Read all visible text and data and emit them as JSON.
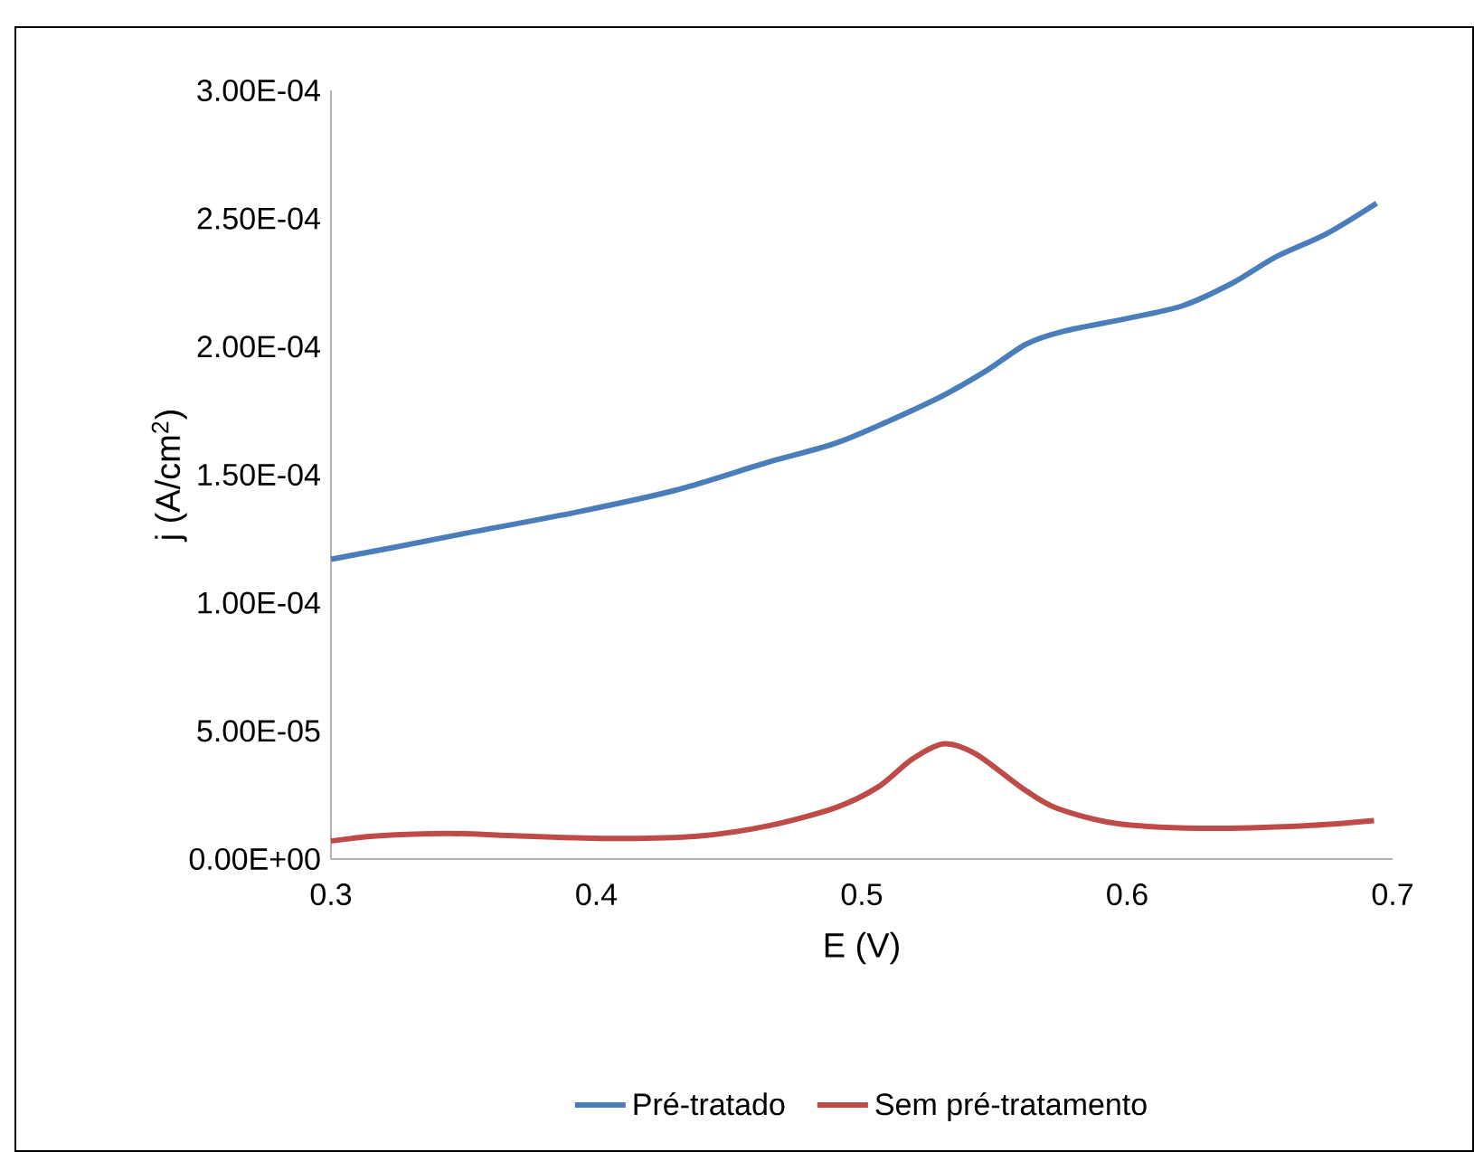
{
  "chart_data": {
    "type": "line",
    "xlabel": "E (V)",
    "ylabel": "j (A/cm$^{2}$)",
    "xlim": [
      0.3,
      0.7
    ],
    "xticks": [
      0.3,
      0.4,
      0.5,
      0.6,
      0.7
    ],
    "ylim": [
      0,
      0.0003
    ],
    "yticks": [
      {
        "value": 0,
        "label": "0.00E+00"
      },
      {
        "value": 5e-05,
        "label": "5.00E-05"
      },
      {
        "value": 0.0001,
        "label": "1.00E-04"
      },
      {
        "value": 0.00015,
        "label": "1.50E-04"
      },
      {
        "value": 0.0002,
        "label": "2.00E-04"
      },
      {
        "value": 0.00025,
        "label": "2.50E-04"
      },
      {
        "value": 0.0003,
        "label": "3.00E-04"
      }
    ],
    "grid": false,
    "legend": "bottom",
    "marker": "none",
    "line_style": "solid",
    "x": [
      0.3,
      0.323,
      0.35,
      0.393,
      0.43,
      0.465,
      0.492,
      0.527,
      0.546,
      0.562,
      0.576,
      0.6,
      0.621,
      0.64,
      0.656,
      0.675,
      0.694
    ],
    "series": [
      {
        "name": "Pré-tratado",
        "color": "#4a7ebb",
        "values": [
          0.000117,
          0.0001215,
          0.000127,
          0.0001355,
          0.000144,
          0.000155,
          0.000163,
          0.000179,
          0.00019,
          0.000201,
          0.000206,
          0.000211,
          0.000216,
          0.000225,
          0.000235,
          0.000244,
          0.000256
        ]
      },
      {
        "name": "Sem pré-tratamento",
        "color": "#be4b48",
        "x": [
          0.3,
          0.317,
          0.344,
          0.371,
          0.406,
          0.439,
          0.465,
          0.49,
          0.506,
          0.519,
          0.531,
          0.543,
          0.56,
          0.573,
          0.595,
          0.627,
          0.667,
          0.693
        ],
        "values": [
          7e-06,
          9e-06,
          1e-05,
          9e-06,
          8e-06,
          9e-06,
          1.3e-05,
          2e-05,
          2.8e-05,
          3.9e-05,
          4.5e-05,
          4.1e-05,
          2.8e-05,
          2e-05,
          1.4e-05,
          1.2e-05,
          1.3e-05,
          1.5e-05
        ]
      }
    ]
  }
}
